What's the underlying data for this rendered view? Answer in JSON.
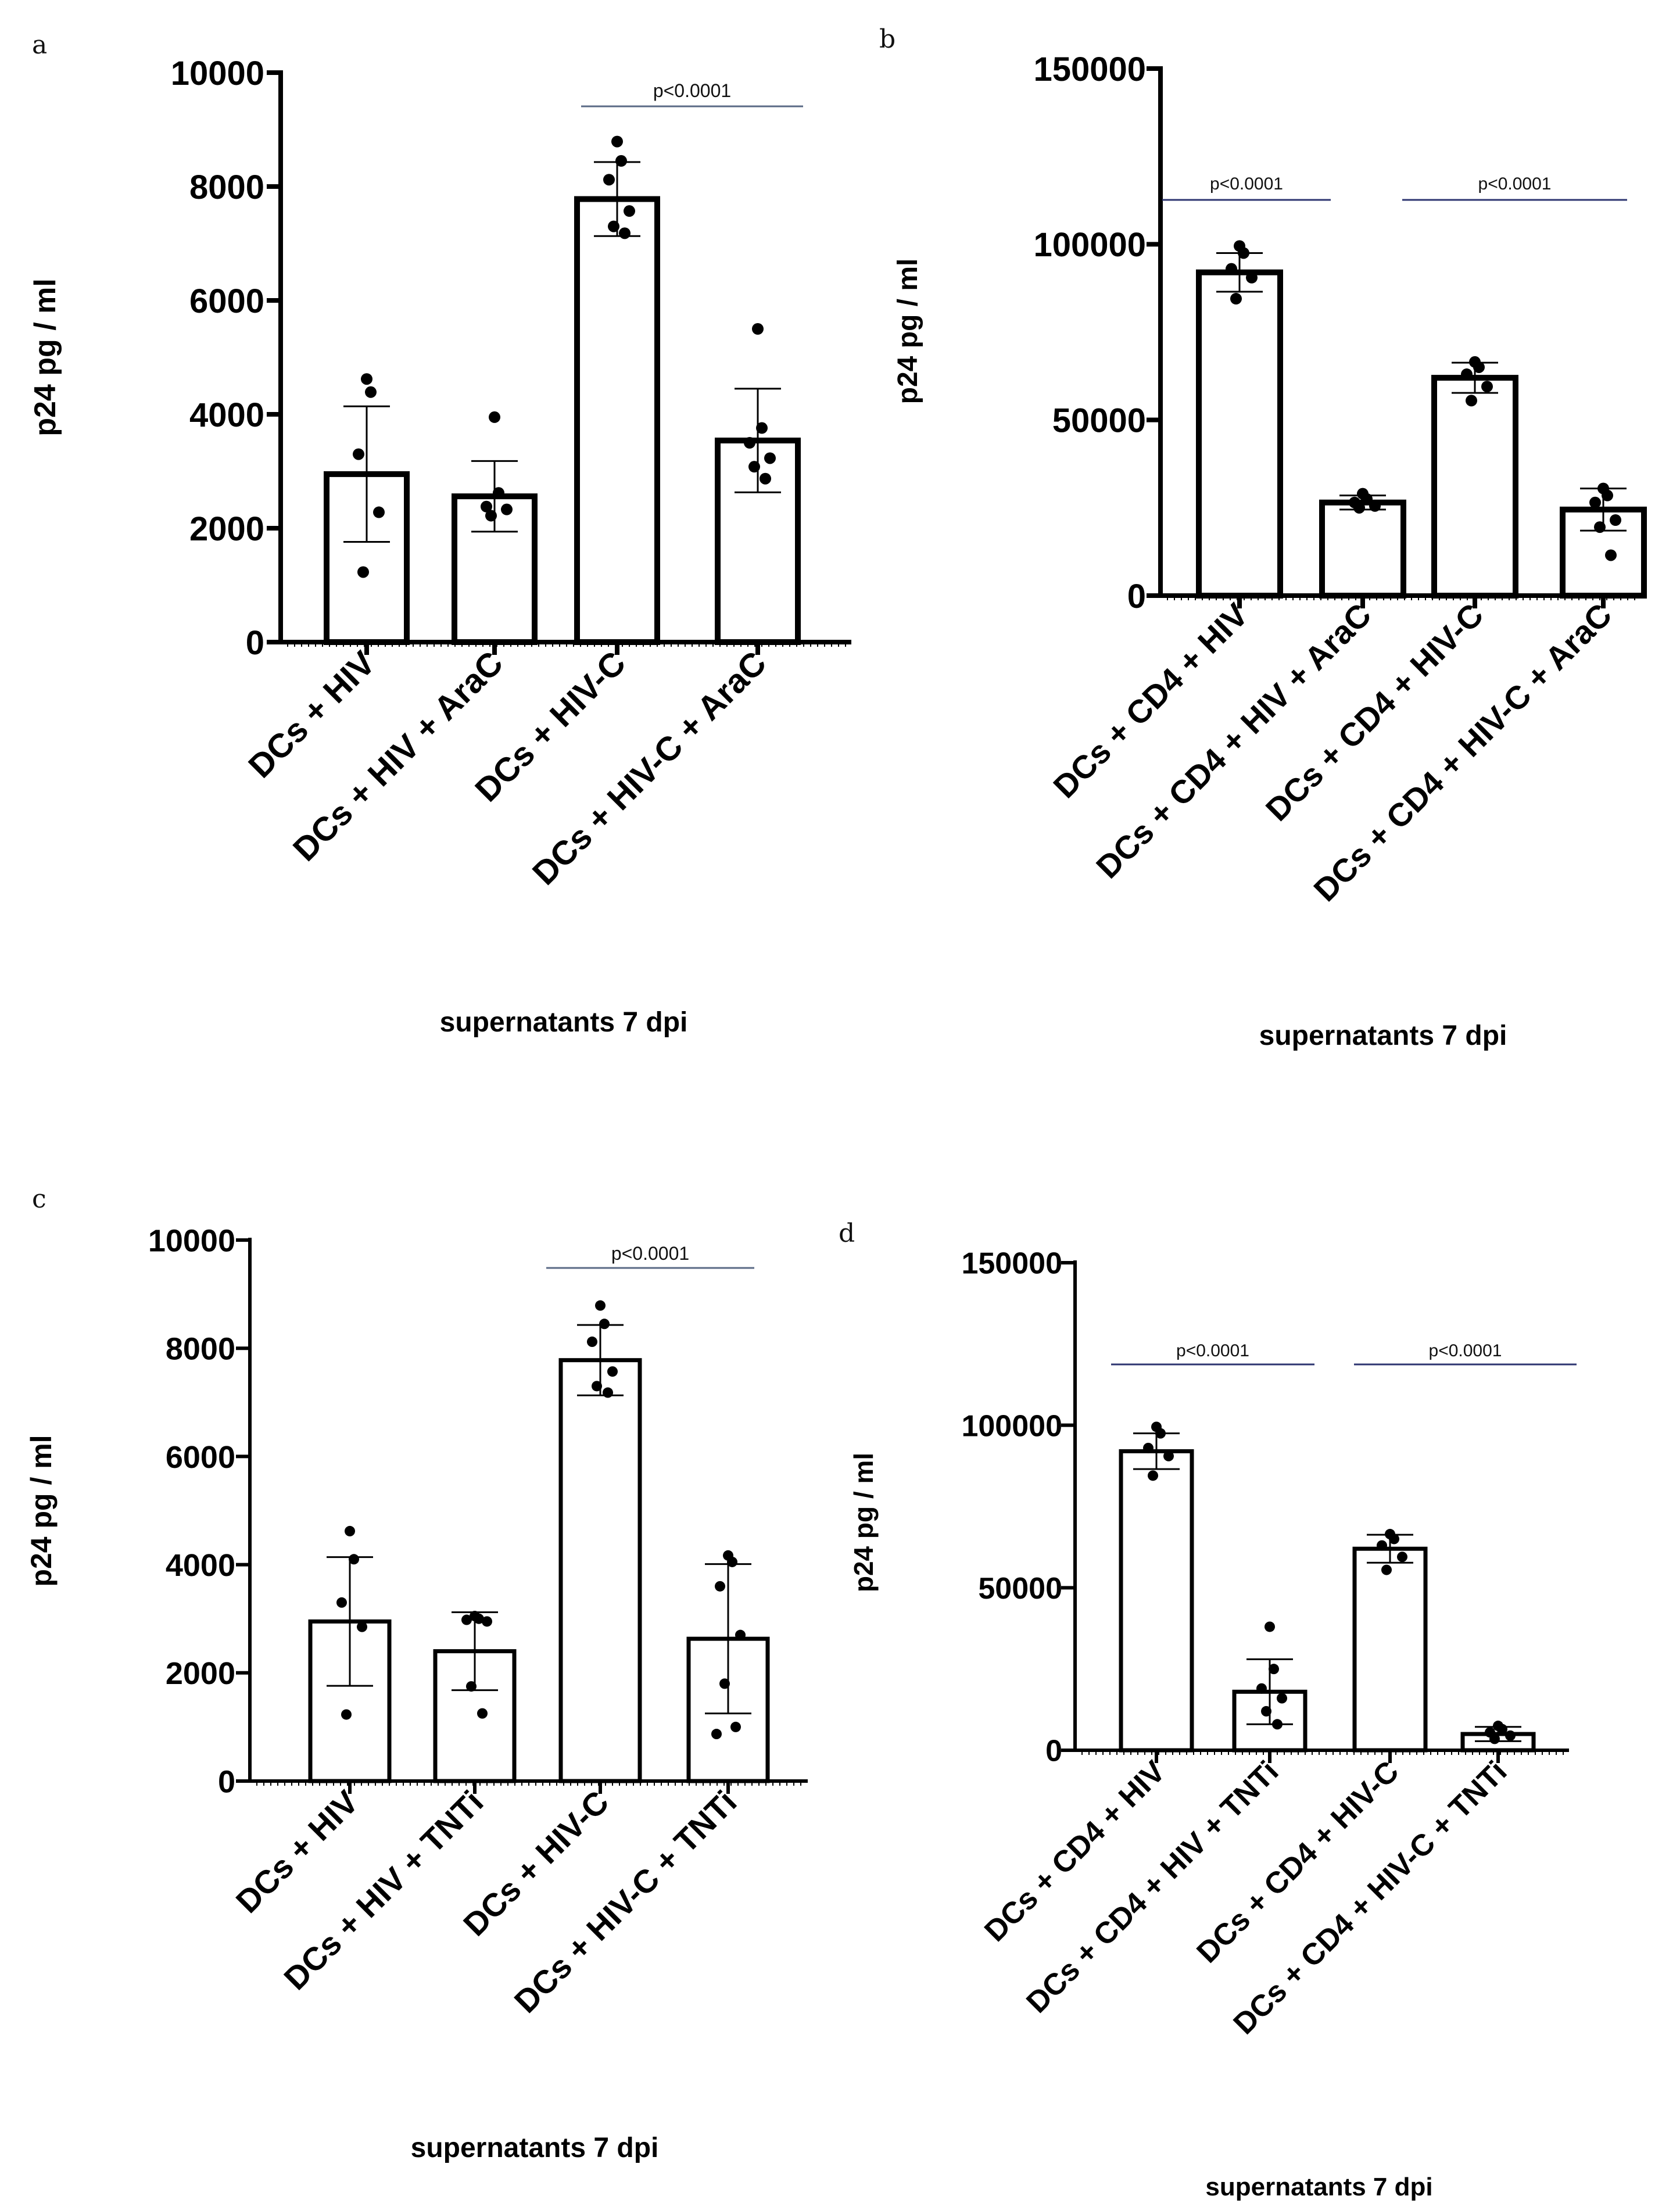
{
  "chart_data": [
    {
      "panel": "a",
      "type": "bar",
      "ylabel": "p24 pg / ml",
      "xlabel": "supernatants 7 dpi",
      "ylim": [
        0,
        10000
      ],
      "yticks": [
        "0",
        "2000",
        "4000",
        "6000",
        "8000",
        "10000"
      ],
      "categories": [
        "DCs + HIV",
        "DCs + HIV + AraC",
        "DCs + HIV-C",
        "DCs + HIV-C + AraC"
      ],
      "values": [
        2950,
        2560,
        7780,
        3540
      ],
      "error": [
        1190,
        620,
        650,
        910
      ],
      "points": [
        [
          4620,
          4390,
          3300,
          2280,
          1230
        ],
        [
          3950,
          2620,
          2380,
          2330,
          2220
        ],
        [
          8790,
          8450,
          8120,
          7570,
          7300,
          7180
        ],
        [
          5500,
          3760,
          3500,
          3230,
          3080,
          2870
        ]
      ],
      "significance": [
        {
          "from": 2,
          "to": 3,
          "label": "p<0.0001"
        }
      ]
    },
    {
      "panel": "b",
      "type": "bar",
      "ylabel": "p24 pg / ml",
      "xlabel": "supernatants 7 dpi",
      "ylim": [
        0,
        150000
      ],
      "yticks": [
        "0",
        "50000",
        "100000",
        "150000"
      ],
      "categories": [
        "DCs + CD4 + HIV",
        "DCs + CD4 + HIV + AraC",
        "DCs + CD4 + HIV-C",
        "DCs + CD4 + HIV-C + AraC"
      ],
      "values": [
        92000,
        26500,
        62000,
        24500
      ],
      "error": [
        5500,
        2000,
        4300,
        6000
      ],
      "points": [
        [
          99500,
          97500,
          93000,
          90500,
          84500
        ],
        [
          29000,
          27500,
          26500,
          25500,
          25000
        ],
        [
          66500,
          65000,
          63000,
          59500,
          55500
        ],
        [
          30500,
          28500,
          26500,
          21500,
          19500,
          11500
        ]
      ],
      "significance": [
        {
          "from": 0,
          "to": 1,
          "label": "p<0.0001"
        },
        {
          "from": 2,
          "to": 3,
          "label": "p<0.0001"
        }
      ]
    },
    {
      "panel": "c",
      "type": "bar",
      "ylabel": "p24 pg / ml",
      "xlabel": "supernatants 7 dpi",
      "ylim": [
        0,
        10000
      ],
      "yticks": [
        "0",
        "2000",
        "4000",
        "6000",
        "8000",
        "10000"
      ],
      "categories": [
        "DCs + HIV",
        "DCs + HIV + TNTi",
        "DCs + HIV-C",
        "DCs + HIV-C + TNTi"
      ],
      "values": [
        2950,
        2400,
        7780,
        2630
      ],
      "error": [
        1190,
        720,
        650,
        1380
      ],
      "points": [
        [
          4620,
          4100,
          3300,
          2850,
          1230
        ],
        [
          3050,
          3000,
          2980,
          2950,
          1750,
          1250
        ],
        [
          8790,
          8450,
          8120,
          7570,
          7300,
          7180
        ],
        [
          4170,
          4050,
          3600,
          2700,
          1800,
          1000,
          870
        ]
      ],
      "significance": [
        {
          "from": 2,
          "to": 3,
          "label": "p<0.0001"
        }
      ]
    },
    {
      "panel": "d",
      "type": "bar",
      "ylabel": "p24 pg / ml",
      "xlabel": "supernatants 7 dpi",
      "ylim": [
        0,
        150000
      ],
      "yticks": [
        "0",
        "50000",
        "100000",
        "150000"
      ],
      "categories": [
        "DCs + CD4 + HIV",
        "DCs + CD4 + HIV + TNTi",
        "DCs + CD4 + HIV-C",
        "DCs + CD4 + HIV-C + TNTi"
      ],
      "values": [
        92000,
        18000,
        62000,
        5000
      ],
      "error": [
        5500,
        10000,
        4300,
        2200
      ],
      "points": [
        [
          99500,
          97500,
          93000,
          90500,
          84500
        ],
        [
          38000,
          25000,
          19000,
          16000,
          12000,
          8000
        ],
        [
          66500,
          65000,
          63000,
          59500,
          55500
        ],
        [
          7500,
          6500,
          5500,
          4500,
          3500
        ]
      ],
      "significance": [
        {
          "from": 0,
          "to": 1,
          "label": "p<0.0001"
        },
        {
          "from": 2,
          "to": 3,
          "label": "p<0.0001"
        }
      ]
    }
  ]
}
